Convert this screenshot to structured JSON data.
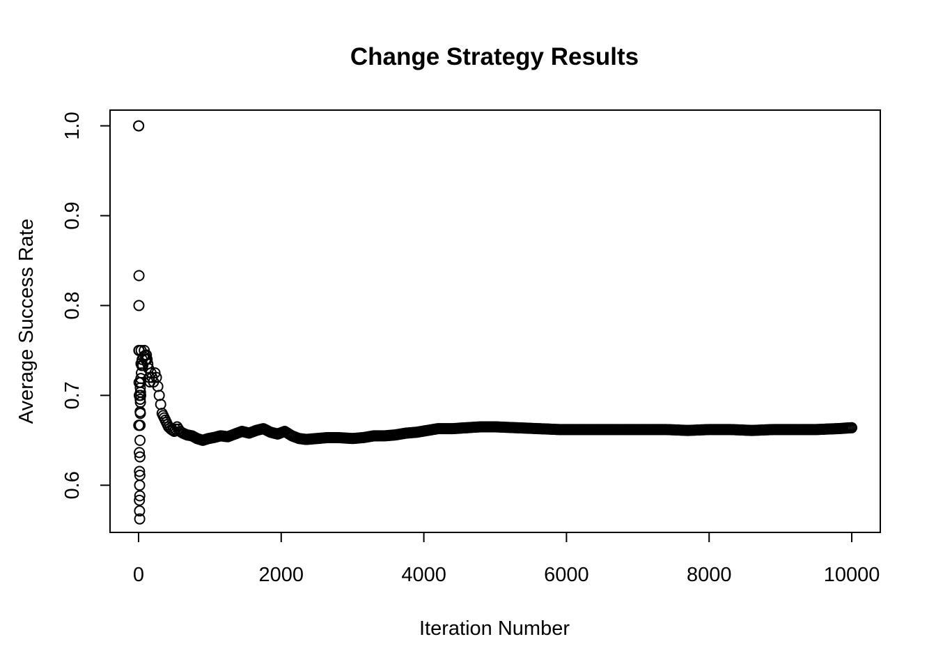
{
  "chart_data": {
    "type": "scatter",
    "title": "Change Strategy Results",
    "xlabel": "Iteration Number",
    "ylabel": "Average Success Rate",
    "xlim": [
      -400,
      10400
    ],
    "ylim": [
      0.5475,
      1.0175
    ],
    "xticks": [
      0,
      2000,
      4000,
      6000,
      8000,
      10000
    ],
    "xtick_labels": [
      "0",
      "2000",
      "4000",
      "6000",
      "8000",
      "10000"
    ],
    "yticks": [
      0.6,
      0.7,
      0.8,
      0.9,
      1.0
    ],
    "ytick_labels": [
      "0.6",
      "0.7",
      "0.8",
      "0.9",
      "1.0"
    ],
    "grid": false,
    "legend": "none",
    "marker": "open-circle",
    "colors": {
      "marker": "#000000",
      "axes": "#000000",
      "background": "#ffffff"
    },
    "series": [
      {
        "points": [
          [
            1,
            1.0
          ],
          [
            2,
            1.0
          ],
          [
            6,
            0.8333
          ],
          [
            5,
            0.8
          ],
          [
            4,
            0.75
          ],
          [
            8,
            0.75
          ],
          [
            3,
            0.6667
          ],
          [
            7,
            0.7143
          ],
          [
            9,
            0.6667
          ],
          [
            10,
            0.7
          ],
          [
            11,
            0.6364
          ],
          [
            12,
            0.5833
          ],
          [
            13,
            0.6154
          ],
          [
            14,
            0.5714
          ],
          [
            15,
            0.6
          ],
          [
            16,
            0.5625
          ],
          [
            17,
            0.5882
          ],
          [
            18,
            0.6111
          ],
          [
            19,
            0.6316
          ],
          [
            20,
            0.65
          ],
          [
            21,
            0.6667
          ],
          [
            22,
            0.6818
          ],
          [
            23,
            0.6957
          ],
          [
            24,
            0.7083
          ],
          [
            25,
            0.68
          ],
          [
            26,
            0.6923
          ],
          [
            27,
            0.7037
          ],
          [
            28,
            0.7143
          ],
          [
            30,
            0.7
          ],
          [
            32,
            0.7188
          ],
          [
            34,
            0.7353
          ],
          [
            36,
            0.75
          ],
          [
            40,
            0.725
          ],
          [
            45,
            0.7333
          ],
          [
            50,
            0.74
          ],
          [
            60,
            0.7333
          ],
          [
            70,
            0.7429
          ],
          [
            80,
            0.75
          ],
          [
            90,
            0.7444
          ],
          [
            100,
            0.74
          ],
          [
            110,
            0.745
          ],
          [
            120,
            0.74
          ],
          [
            130,
            0.735
          ],
          [
            140,
            0.73
          ],
          [
            150,
            0.72
          ],
          [
            160,
            0.715
          ],
          [
            175,
            0.725
          ],
          [
            190,
            0.72
          ],
          [
            210,
            0.715
          ],
          [
            230,
            0.725
          ],
          [
            250,
            0.72
          ],
          [
            270,
            0.71
          ],
          [
            290,
            0.7
          ],
          [
            310,
            0.69
          ],
          [
            330,
            0.68
          ],
          [
            360,
            0.675
          ],
          [
            390,
            0.67
          ],
          [
            420,
            0.665
          ],
          [
            460,
            0.662
          ],
          [
            500,
            0.66
          ],
          [
            540,
            0.665
          ],
          [
            580,
            0.66
          ],
          [
            620,
            0.658
          ],
          [
            680,
            0.656
          ],
          [
            750,
            0.655
          ],
          [
            820,
            0.652
          ],
          [
            900,
            0.65
          ],
          [
            980,
            0.652
          ],
          [
            1050,
            0.653
          ],
          [
            1150,
            0.655
          ],
          [
            1250,
            0.654
          ],
          [
            1350,
            0.657
          ],
          [
            1450,
            0.66
          ],
          [
            1550,
            0.658
          ],
          [
            1650,
            0.661
          ],
          [
            1750,
            0.663
          ],
          [
            1850,
            0.659
          ],
          [
            1950,
            0.657
          ],
          [
            2050,
            0.66
          ],
          [
            2150,
            0.655
          ],
          [
            2250,
            0.652
          ],
          [
            2350,
            0.651
          ],
          [
            2500,
            0.652
          ],
          [
            2650,
            0.653
          ],
          [
            2800,
            0.653
          ],
          [
            3000,
            0.652
          ],
          [
            3150,
            0.653
          ],
          [
            3300,
            0.655
          ],
          [
            3450,
            0.655
          ],
          [
            3600,
            0.656
          ],
          [
            3750,
            0.658
          ],
          [
            3900,
            0.659
          ],
          [
            4050,
            0.661
          ],
          [
            4200,
            0.663
          ],
          [
            4400,
            0.663
          ],
          [
            4600,
            0.664
          ],
          [
            4800,
            0.665
          ],
          [
            5000,
            0.665
          ],
          [
            5300,
            0.664
          ],
          [
            5600,
            0.663
          ],
          [
            5900,
            0.662
          ],
          [
            6200,
            0.662
          ],
          [
            6500,
            0.662
          ],
          [
            6800,
            0.662
          ],
          [
            7100,
            0.662
          ],
          [
            7400,
            0.662
          ],
          [
            7700,
            0.661
          ],
          [
            8000,
            0.662
          ],
          [
            8300,
            0.662
          ],
          [
            8600,
            0.661
          ],
          [
            8900,
            0.662
          ],
          [
            9200,
            0.662
          ],
          [
            9500,
            0.662
          ],
          [
            9800,
            0.663
          ],
          [
            10000,
            0.664
          ]
        ]
      }
    ]
  }
}
